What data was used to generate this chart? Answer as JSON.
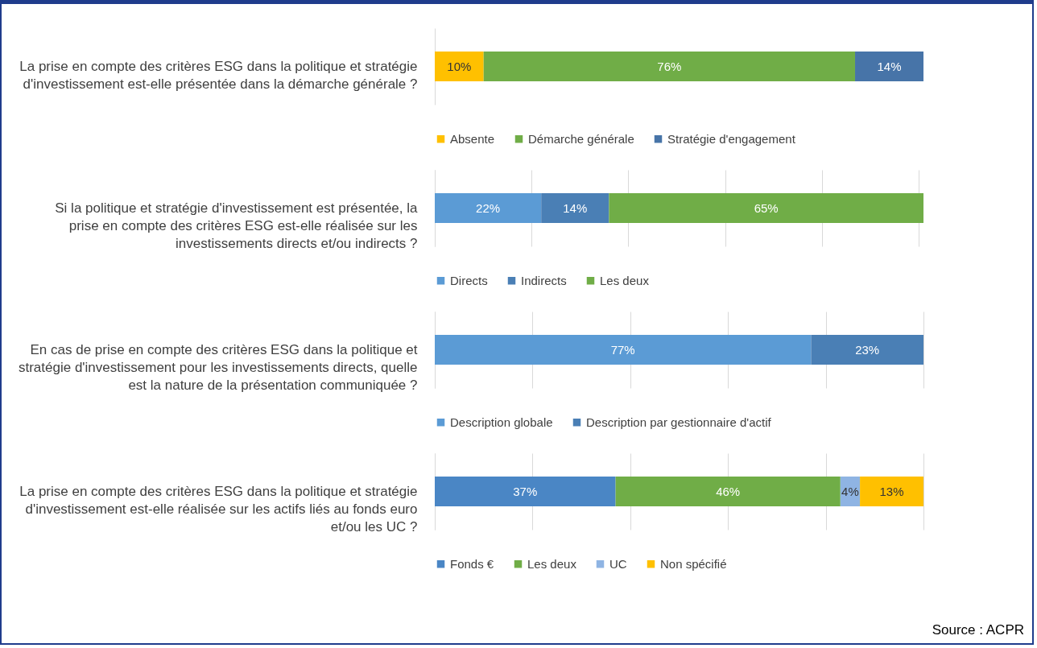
{
  "chart_data": [
    {
      "type": "bar",
      "orientation": "horizontal",
      "stacked": true,
      "categories": [
        "La prise en compte des critères ESG dans la politique et stratégie d'investissement est-elle présentée dans la démarche générale ?"
      ],
      "xlim": [
        0,
        100
      ],
      "grid": false,
      "tick_labels": false,
      "legend": "bottom",
      "series": [
        {
          "name": "Absente",
          "color": "#ffc000",
          "values": [
            10
          ],
          "value_labels": [
            "10%"
          ]
        },
        {
          "name": "Démarche générale",
          "color": "#70ad47",
          "values": [
            76
          ],
          "value_labels": [
            "76%"
          ]
        },
        {
          "name": "Stratégie d'engagement",
          "color": "#4774a8",
          "values": [
            14
          ],
          "value_labels": [
            "14%"
          ]
        }
      ]
    },
    {
      "type": "bar",
      "orientation": "horizontal",
      "stacked": true,
      "categories": [
        "Si la politique et stratégie d'investissement est présentée, la prise en compte des critères ESG est-elle réalisée sur les investissements directs et/ou indirects ?"
      ],
      "xlim": [
        0,
        101
      ],
      "xticks": [
        {
          "value": 0,
          "label": null
        },
        {
          "value": 20,
          "label": null
        },
        {
          "value": 40,
          "label": null
        },
        {
          "value": 60,
          "label": null
        },
        {
          "value": 80,
          "label": null
        },
        {
          "value": 100,
          "label": null
        }
      ],
      "grid": "x",
      "tick_labels": false,
      "legend": "bottom",
      "series": [
        {
          "name": "Directs",
          "color": "#5b9bd5",
          "values": [
            22
          ],
          "value_labels": [
            "22%"
          ]
        },
        {
          "name": "Indirects",
          "color": "#4a7fb5",
          "values": [
            14
          ],
          "value_labels": [
            "14%"
          ]
        },
        {
          "name": "Les deux",
          "color": "#70ad47",
          "values": [
            65
          ],
          "value_labels": [
            "65%"
          ]
        }
      ]
    },
    {
      "type": "bar",
      "orientation": "horizontal",
      "stacked": true,
      "categories": [
        "En cas de prise en compte des critères ESG dans la politique et stratégie d'investissement pour les investissements directs, quelle est la nature de la présentation communiquée ?"
      ],
      "xlim": [
        0,
        100
      ],
      "xticks": [
        {
          "value": 0,
          "label": null
        },
        {
          "value": 20,
          "label": null
        },
        {
          "value": 40,
          "label": null
        },
        {
          "value": 60,
          "label": null
        },
        {
          "value": 80,
          "label": null
        },
        {
          "value": 100,
          "label": null
        }
      ],
      "grid": "x",
      "tick_labels": false,
      "legend": "bottom",
      "series": [
        {
          "name": "Description globale",
          "color": "#5b9bd5",
          "values": [
            77
          ],
          "value_labels": [
            "77%"
          ]
        },
        {
          "name": "Description par gestionnaire d'actif",
          "color": "#4a7fb5",
          "values": [
            23
          ],
          "value_labels": [
            "23%"
          ]
        }
      ]
    },
    {
      "type": "bar",
      "orientation": "horizontal",
      "stacked": true,
      "categories": [
        "La prise en compte des critères ESG dans la politique et stratégie d'investissement est-elle réalisée sur les actifs liés au fonds euro et/ou les UC ?"
      ],
      "xlim": [
        0,
        100
      ],
      "xticks": [
        {
          "value": 0,
          "label": null
        },
        {
          "value": 20,
          "label": null
        },
        {
          "value": 40,
          "label": null
        },
        {
          "value": 60,
          "label": null
        },
        {
          "value": 80,
          "label": null
        },
        {
          "value": 100,
          "label": null
        }
      ],
      "grid": "x",
      "tick_labels": false,
      "legend": "bottom",
      "annotations": [
        "Source : ACPR"
      ],
      "series": [
        {
          "name": "Fonds €",
          "color": "#4a86c5",
          "values": [
            37
          ],
          "value_labels": [
            "37%"
          ]
        },
        {
          "name": "Les deux",
          "color": "#70ad47",
          "values": [
            46
          ],
          "value_labels": [
            "46%"
          ]
        },
        {
          "name": "UC",
          "color": "#8fb4e3",
          "values": [
            4
          ],
          "value_labels": [
            "4%"
          ]
        },
        {
          "name": "Non spécifié",
          "color": "#ffc000",
          "values": [
            13
          ],
          "value_labels": [
            "13%"
          ]
        }
      ]
    }
  ]
}
